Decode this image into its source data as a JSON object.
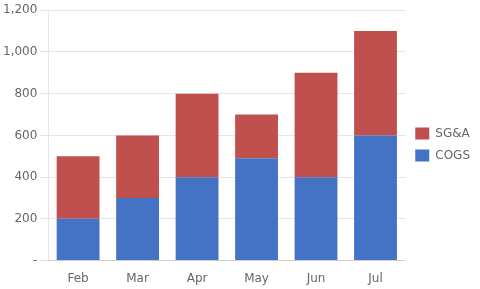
{
  "chart_data": {
    "type": "bar",
    "stacked": true,
    "categories": [
      "Feb",
      "Mar",
      "Apr",
      "May",
      "Jun",
      "Jul"
    ],
    "series": [
      {
        "name": "COGS",
        "color": "#4472C4",
        "values": [
          200,
          300,
          400,
          490,
          400,
          600
        ]
      },
      {
        "name": "SG&A",
        "color": "#C0504D",
        "values": [
          300,
          300,
          400,
          210,
          500,
          500
        ]
      }
    ],
    "ylim": [
      0,
      1200
    ],
    "yticks": [
      {
        "value": 0,
        "label": "-"
      },
      200,
      400,
      600,
      800,
      {
        "value": 1000,
        "label": "1,000"
      },
      {
        "value": 1200,
        "label": "1,200"
      }
    ],
    "grid": true,
    "legend": "right"
  }
}
